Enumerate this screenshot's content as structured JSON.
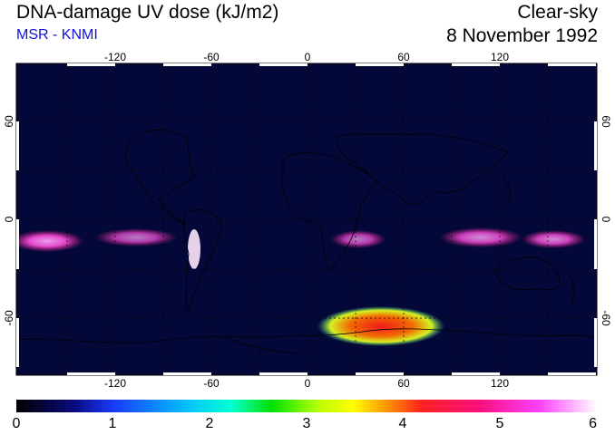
{
  "header": {
    "title": "DNA-damage UV dose (kJ/m2)",
    "source": "MSR - KNMI",
    "condition": "Clear-sky",
    "date": "8 November 1992"
  },
  "map": {
    "lon_ticks": [
      "-120",
      "-60",
      "0",
      "60",
      "120"
    ],
    "lat_ticks": [
      "60",
      "0",
      "-60"
    ]
  },
  "colorbar": {
    "labels": [
      "0",
      "1",
      "2",
      "3",
      "4",
      "5",
      "6"
    ],
    "colors": [
      "#000000",
      "#0a0a80",
      "#1a3cff",
      "#00c8ff",
      "#00ffd0",
      "#00e000",
      "#b8ff00",
      "#ffff00",
      "#ff9000",
      "#ff2020",
      "#ff1080",
      "#ff40ff",
      "#ffffff"
    ]
  }
}
